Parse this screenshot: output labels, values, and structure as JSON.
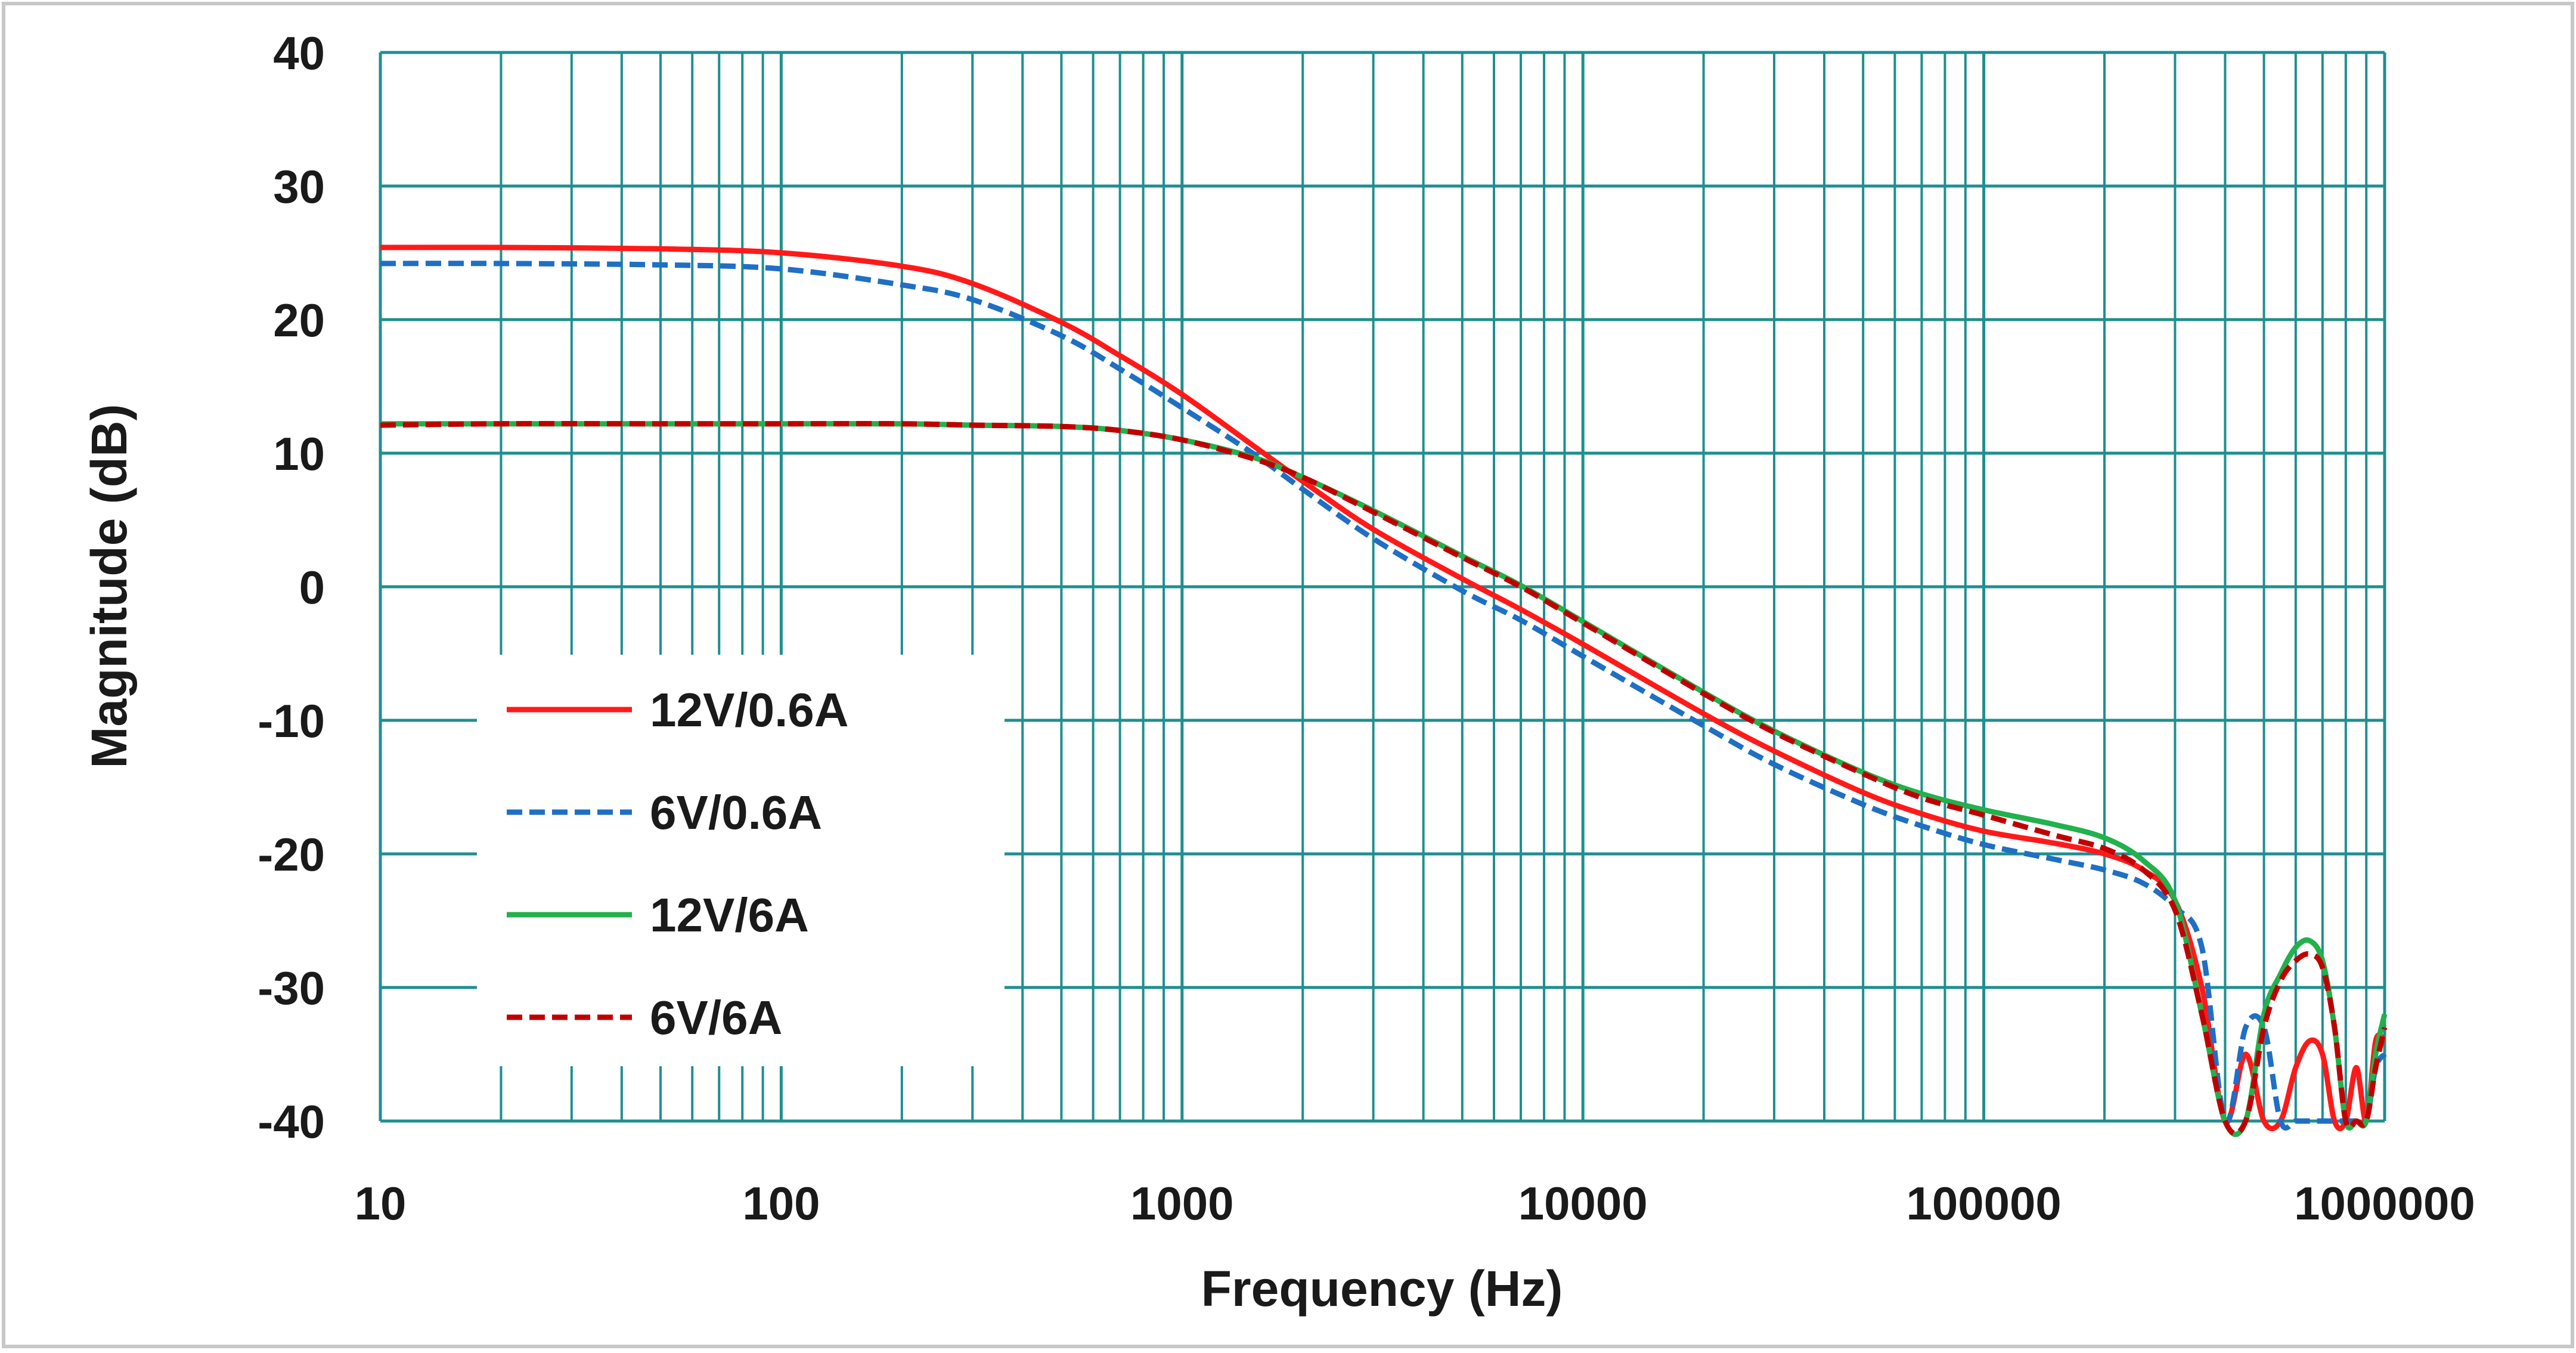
{
  "chart_data": {
    "type": "line",
    "xlabel": "Frequency (Hz)",
    "ylabel": "Magnitude (dB)",
    "xscale": "log",
    "xlim": [
      10,
      1000000
    ],
    "ylim": [
      -40,
      40
    ],
    "xticks": [
      "10",
      "100",
      "1000",
      "10000",
      "100000",
      "1000000"
    ],
    "yticks": [
      "40",
      "30",
      "20",
      "10",
      "0",
      "-10",
      "-20",
      "-30",
      "-40"
    ],
    "grid": true,
    "legend_position": "lower-left",
    "colors": {
      "grid": "#1f8f8f",
      "frame": "#c8c8c8"
    },
    "series": [
      {
        "name": "12V/0.6A",
        "color": "#ff1a1a",
        "dash": "solid",
        "x": [
          10,
          20,
          50,
          100,
          200,
          300,
          500,
          700,
          1000,
          1500,
          2000,
          3000,
          5000,
          7000,
          10000,
          20000,
          30000,
          50000,
          70000,
          100000,
          150000,
          200000,
          250000,
          300000,
          350000,
          400000,
          450000,
          500000,
          550000,
          600000,
          650000,
          700000,
          750000,
          800000,
          850000,
          900000,
          950000,
          1000000
        ],
        "values": [
          25.4,
          25.4,
          25.3,
          25,
          24,
          22.7,
          19.8,
          17.3,
          14.4,
          10.6,
          7.9,
          4.3,
          0.6,
          -1.7,
          -4.3,
          -9.5,
          -12.3,
          -15.4,
          -17,
          -18.3,
          -19.2,
          -20,
          -21.2,
          -23.5,
          -30,
          -40,
          -35,
          -40,
          -40,
          -36,
          -34,
          -35,
          -40,
          -40,
          -36,
          -40,
          -34,
          -34
        ]
      },
      {
        "name": "6V/0.6A",
        "color": "#1f6fc4",
        "dash": "dashed",
        "x": [
          10,
          20,
          50,
          100,
          200,
          300,
          500,
          700,
          1000,
          1500,
          2000,
          3000,
          5000,
          7000,
          10000,
          20000,
          30000,
          50000,
          70000,
          100000,
          150000,
          200000,
          250000,
          300000,
          350000,
          400000,
          450000,
          500000,
          550000,
          600000,
          650000,
          700000,
          750000,
          800000,
          850000,
          900000,
          950000,
          1000000
        ],
        "values": [
          24.2,
          24.2,
          24.1,
          23.8,
          22.6,
          21.5,
          18.8,
          16.3,
          13.4,
          10,
          7.3,
          3.6,
          -0.3,
          -2.5,
          -5.2,
          -10.4,
          -13.3,
          -16.3,
          -17.9,
          -19.3,
          -20.4,
          -21.2,
          -22.2,
          -24,
          -27,
          -40,
          -33,
          -33,
          -40,
          -40,
          -40,
          -40,
          -40,
          -40,
          -40,
          -40,
          -36,
          -35
        ]
      },
      {
        "name": "12V/6A",
        "color": "#22b14c",
        "dash": "solid",
        "x": [
          10,
          20,
          50,
          100,
          200,
          300,
          500,
          700,
          1000,
          1500,
          2000,
          3000,
          5000,
          7000,
          10000,
          20000,
          30000,
          50000,
          70000,
          100000,
          150000,
          200000,
          250000,
          300000,
          350000,
          400000,
          450000,
          500000,
          550000,
          600000,
          650000,
          700000,
          750000,
          800000,
          850000,
          900000,
          950000,
          1000000
        ],
        "values": [
          12.2,
          12.2,
          12.2,
          12.2,
          12.2,
          12.1,
          12,
          11.7,
          11,
          9.7,
          8.2,
          5.7,
          2.3,
          0.1,
          -2.6,
          -7.9,
          -10.8,
          -13.9,
          -15.5,
          -16.7,
          -17.8,
          -18.8,
          -20.5,
          -23.5,
          -32,
          -40,
          -40,
          -32,
          -29,
          -27,
          -26.5,
          -28,
          -33,
          -40,
          -40,
          -40,
          -35,
          -32
        ]
      },
      {
        "name": "6V/6A",
        "color": "#c00000",
        "dash": "dashed",
        "x": [
          10,
          20,
          50,
          100,
          200,
          300,
          500,
          700,
          1000,
          1500,
          2000,
          3000,
          5000,
          7000,
          10000,
          20000,
          30000,
          50000,
          70000,
          100000,
          150000,
          200000,
          250000,
          300000,
          350000,
          400000,
          450000,
          500000,
          550000,
          600000,
          650000,
          700000,
          750000,
          800000,
          850000,
          900000,
          950000,
          1000000
        ],
        "values": [
          12.1,
          12.2,
          12.2,
          12.2,
          12.2,
          12.1,
          12,
          11.7,
          11,
          9.6,
          8.2,
          5.6,
          2.2,
          0,
          -2.7,
          -8,
          -10.9,
          -14,
          -15.8,
          -17.1,
          -18.6,
          -19.6,
          -21.2,
          -24.2,
          -32,
          -40,
          -40,
          -33,
          -29.5,
          -28,
          -27.5,
          -28.5,
          -33,
          -40,
          -40,
          -40,
          -36,
          -33
        ]
      }
    ]
  }
}
